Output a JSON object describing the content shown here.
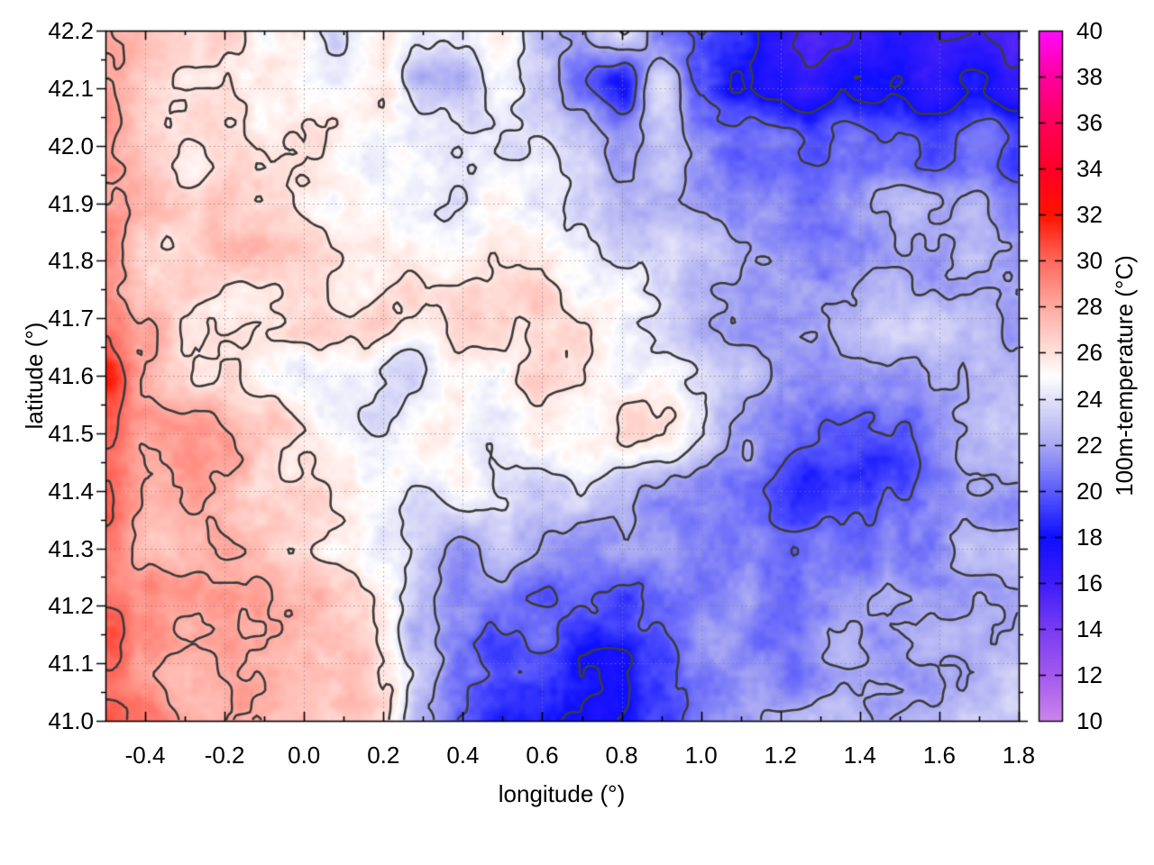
{
  "chart_data": {
    "type": "heatmap",
    "title": "",
    "xlabel": "longitude (°)",
    "ylabel": "latitude (°)",
    "colorbar_label": "100m-temperature (°C)",
    "xlim": [
      -0.5,
      1.8
    ],
    "ylim": [
      41.0,
      42.2
    ],
    "zlim": [
      10,
      40
    ],
    "x_ticks": [
      -0.4,
      -0.2,
      0.0,
      0.2,
      0.4,
      0.6,
      0.8,
      1.0,
      1.2,
      1.4,
      1.6,
      1.8
    ],
    "y_ticks": [
      41.0,
      41.1,
      41.2,
      41.3,
      41.4,
      41.5,
      41.6,
      41.7,
      41.8,
      41.9,
      42.0,
      42.1,
      42.2
    ],
    "x_minor_step": 0.1,
    "y_minor_step": 0.05,
    "grid_on": true,
    "colorbar_ticks": [
      10,
      12,
      14,
      16,
      18,
      20,
      22,
      24,
      26,
      28,
      30,
      32,
      34,
      36,
      38,
      40
    ],
    "contour_levels": [
      16,
      18,
      20,
      22,
      24,
      26,
      28,
      30
    ],
    "contour_color": "#3b3b3b",
    "grid_line_color": "#9a9a9a",
    "border_color": "#000000",
    "palette": [
      [
        10,
        204,
        134,
        236
      ],
      [
        12,
        163,
        90,
        238
      ],
      [
        14,
        122,
        60,
        242
      ],
      [
        16,
        62,
        30,
        250
      ],
      [
        18,
        15,
        15,
        255
      ],
      [
        20,
        92,
        92,
        253
      ],
      [
        22,
        169,
        169,
        243
      ],
      [
        24,
        226,
        226,
        249
      ],
      [
        25,
        255,
        255,
        255
      ],
      [
        26,
        255,
        227,
        222
      ],
      [
        28,
        255,
        171,
        161
      ],
      [
        30,
        255,
        106,
        94
      ],
      [
        32,
        255,
        20,
        0
      ],
      [
        34,
        255,
        0,
        40
      ],
      [
        36,
        255,
        0,
        90
      ],
      [
        38,
        255,
        0,
        160
      ],
      [
        40,
        255,
        10,
        252
      ]
    ],
    "grid": {
      "lon": [
        -0.5,
        -0.4,
        -0.3,
        -0.2,
        -0.1,
        0.0,
        0.1,
        0.2,
        0.3,
        0.4,
        0.5,
        0.6,
        0.7,
        0.8,
        0.9,
        1.0,
        1.1,
        1.2,
        1.3,
        1.4,
        1.5,
        1.6,
        1.7,
        1.8
      ],
      "lat": [
        42.2,
        42.1,
        42.0,
        41.9,
        41.8,
        41.7,
        41.6,
        41.5,
        41.4,
        41.3,
        41.2,
        41.1,
        41.0
      ],
      "temperature": [
        [
          28,
          27.5,
          27,
          26.5,
          24.5,
          25.5,
          24,
          25.5,
          24,
          23.5,
          25.5,
          23,
          22,
          23.5,
          21,
          20,
          19,
          16.5,
          15.5,
          16,
          16.5,
          16,
          16.5,
          16
        ],
        [
          28,
          27,
          26.5,
          26.5,
          26,
          25.5,
          25,
          26,
          23,
          22.5,
          24.5,
          23,
          20.5,
          19,
          24.5,
          20,
          18.5,
          18,
          17,
          17.5,
          18,
          17,
          17.5,
          16.5
        ],
        [
          28,
          26.5,
          26,
          26.5,
          26,
          26,
          25.5,
          24.5,
          24,
          23.5,
          23.5,
          24.5,
          22.5,
          22,
          22.5,
          21.5,
          20.5,
          21,
          20,
          20.5,
          21,
          20,
          21.5,
          19.5
        ],
        [
          28.5,
          27,
          26.5,
          27,
          26.5,
          26,
          25.5,
          25,
          24.5,
          24,
          24.5,
          25,
          23.5,
          23,
          22.5,
          22,
          21.5,
          21.5,
          21,
          21.5,
          22,
          21.5,
          22,
          21
        ],
        [
          29,
          27,
          26,
          26.5,
          27,
          26.5,
          26,
          26,
          25.5,
          25,
          25.5,
          26,
          25,
          24,
          23,
          22.5,
          22,
          22,
          21.5,
          22,
          22.5,
          22,
          22.5,
          22
        ],
        [
          29.5,
          27.5,
          26,
          25.5,
          26,
          26.5,
          26,
          26.5,
          26,
          26.5,
          26,
          26.5,
          26,
          25,
          24,
          23,
          22,
          21.5,
          22,
          22.5,
          23,
          23.5,
          23,
          22.5
        ],
        [
          31,
          27.5,
          26.5,
          26,
          25,
          24.5,
          24.5,
          24,
          24.5,
          25,
          25.5,
          26,
          25.5,
          25,
          25.5,
          24,
          22.5,
          21.5,
          21,
          21.5,
          22,
          22.5,
          23,
          22.5
        ],
        [
          31,
          28,
          28,
          28.5,
          27,
          26,
          25,
          24.5,
          25,
          24.5,
          25,
          25.5,
          25,
          25.5,
          26,
          24.5,
          22,
          20.5,
          19.5,
          19,
          20,
          22,
          23,
          22.5
        ],
        [
          31,
          28.5,
          28,
          27.5,
          26.5,
          26,
          25.5,
          25,
          24.5,
          25.5,
          24,
          23.5,
          24,
          23,
          22,
          21,
          20.5,
          19.5,
          18.5,
          18.5,
          19.5,
          21.5,
          22.5,
          22
        ],
        [
          30,
          28,
          27,
          27.5,
          27,
          26.5,
          25.5,
          24,
          23,
          22,
          23.5,
          22,
          21.5,
          22,
          21.5,
          21,
          20.5,
          20,
          20.5,
          20,
          21,
          21.5,
          22,
          22.5
        ],
        [
          30,
          28.5,
          28,
          27.5,
          27.5,
          27,
          26,
          25,
          22.5,
          21.5,
          21,
          20.5,
          20,
          19.5,
          20.5,
          21,
          21.5,
          20.5,
          21,
          21.5,
          22,
          22,
          22.5,
          22.5
        ],
        [
          29.5,
          28.5,
          28,
          28,
          27.5,
          27,
          26.5,
          25.5,
          23,
          20.5,
          19.5,
          20,
          18.5,
          17.5,
          19.5,
          21,
          21.5,
          21,
          21.5,
          22,
          22,
          22.5,
          22.5,
          22.5
        ],
        [
          29.5,
          29,
          28.5,
          28,
          28,
          27.5,
          27,
          26,
          21.5,
          19.5,
          18.5,
          18.5,
          18,
          17.5,
          19,
          20.5,
          21.5,
          22,
          22,
          22.5,
          22.5,
          22.5,
          23,
          23
        ]
      ]
    }
  }
}
